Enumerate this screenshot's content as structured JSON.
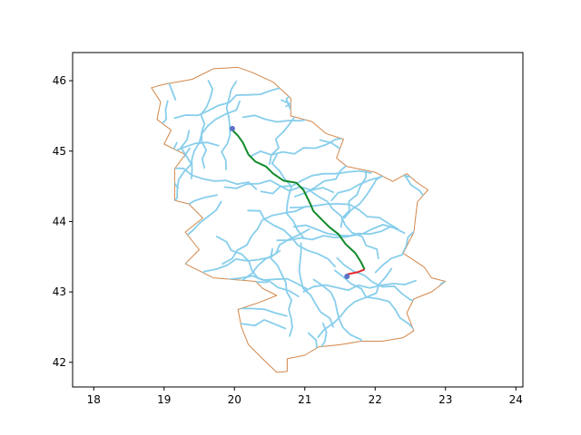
{
  "chart_data": {
    "type": "map",
    "title": "",
    "xlabel": "",
    "ylabel": "",
    "xlim": [
      17.7,
      24.1
    ],
    "ylim": [
      41.65,
      46.4
    ],
    "x_ticks": [
      18,
      19,
      20,
      21,
      22,
      23,
      24
    ],
    "y_ticks": [
      42,
      43,
      44,
      45,
      46
    ],
    "x_tick_labels": [
      "18",
      "19",
      "20",
      "21",
      "22",
      "23",
      "24"
    ],
    "y_tick_labels": [
      "42",
      "43",
      "44",
      "45",
      "46"
    ],
    "grid": false,
    "legend": "none",
    "colors": {
      "border": "#d2874b",
      "roads": "#87ceeb",
      "route_main": "#118a2a",
      "route_segment": "#e8262a",
      "endpoints": "#5a72c8"
    },
    "border_polygon": [
      [
        19.0,
        45.95
      ],
      [
        19.4,
        46.02
      ],
      [
        19.7,
        46.17
      ],
      [
        20.05,
        46.19
      ],
      [
        20.25,
        46.12
      ],
      [
        20.55,
        45.98
      ],
      [
        20.8,
        45.75
      ],
      [
        20.8,
        45.5
      ],
      [
        21.1,
        45.42
      ],
      [
        21.3,
        45.25
      ],
      [
        21.55,
        45.17
      ],
      [
        21.45,
        44.9
      ],
      [
        21.6,
        44.78
      ],
      [
        22.0,
        44.7
      ],
      [
        22.25,
        44.57
      ],
      [
        22.45,
        44.68
      ],
      [
        22.6,
        44.55
      ],
      [
        22.75,
        44.45
      ],
      [
        22.6,
        44.28
      ],
      [
        22.55,
        43.85
      ],
      [
        22.4,
        43.55
      ],
      [
        22.7,
        43.35
      ],
      [
        22.8,
        43.2
      ],
      [
        23.0,
        43.15
      ],
      [
        22.8,
        43.0
      ],
      [
        22.55,
        42.9
      ],
      [
        22.45,
        42.7
      ],
      [
        22.55,
        42.45
      ],
      [
        22.4,
        42.35
      ],
      [
        22.1,
        42.3
      ],
      [
        21.8,
        42.3
      ],
      [
        21.5,
        42.25
      ],
      [
        21.2,
        42.22
      ],
      [
        21.0,
        42.1
      ],
      [
        20.75,
        42.05
      ],
      [
        20.75,
        41.87
      ],
      [
        20.6,
        41.86
      ],
      [
        20.4,
        42.05
      ],
      [
        20.2,
        42.25
      ],
      [
        20.1,
        42.5
      ],
      [
        20.05,
        42.75
      ],
      [
        20.35,
        42.85
      ],
      [
        20.6,
        42.95
      ],
      [
        20.4,
        43.05
      ],
      [
        20.3,
        43.15
      ],
      [
        19.7,
        43.2
      ],
      [
        19.3,
        43.4
      ],
      [
        19.5,
        43.6
      ],
      [
        19.3,
        43.85
      ],
      [
        19.55,
        44.05
      ],
      [
        19.35,
        44.25
      ],
      [
        19.15,
        44.3
      ],
      [
        19.15,
        44.75
      ],
      [
        19.3,
        44.95
      ],
      [
        19.0,
        45.1
      ],
      [
        19.1,
        45.3
      ],
      [
        18.9,
        45.45
      ],
      [
        18.95,
        45.7
      ],
      [
        18.82,
        45.9
      ],
      [
        19.0,
        45.95
      ]
    ],
    "route_main": [
      [
        19.97,
        45.3
      ],
      [
        20.05,
        45.22
      ],
      [
        20.12,
        45.12
      ],
      [
        20.2,
        44.95
      ],
      [
        20.3,
        44.85
      ],
      [
        20.45,
        44.78
      ],
      [
        20.55,
        44.68
      ],
      [
        20.7,
        44.58
      ],
      [
        20.88,
        44.55
      ],
      [
        20.98,
        44.45
      ],
      [
        21.08,
        44.25
      ],
      [
        21.12,
        44.15
      ],
      [
        21.25,
        44.02
      ],
      [
        21.35,
        43.92
      ],
      [
        21.48,
        43.82
      ],
      [
        21.58,
        43.68
      ],
      [
        21.72,
        43.55
      ],
      [
        21.8,
        43.42
      ],
      [
        21.85,
        43.32
      ]
    ],
    "route_segment": [
      [
        21.85,
        43.32
      ],
      [
        21.75,
        43.28
      ],
      [
        21.6,
        43.25
      ]
    ],
    "endpoints": [
      [
        19.97,
        45.32
      ],
      [
        21.6,
        43.22
      ]
    ]
  }
}
